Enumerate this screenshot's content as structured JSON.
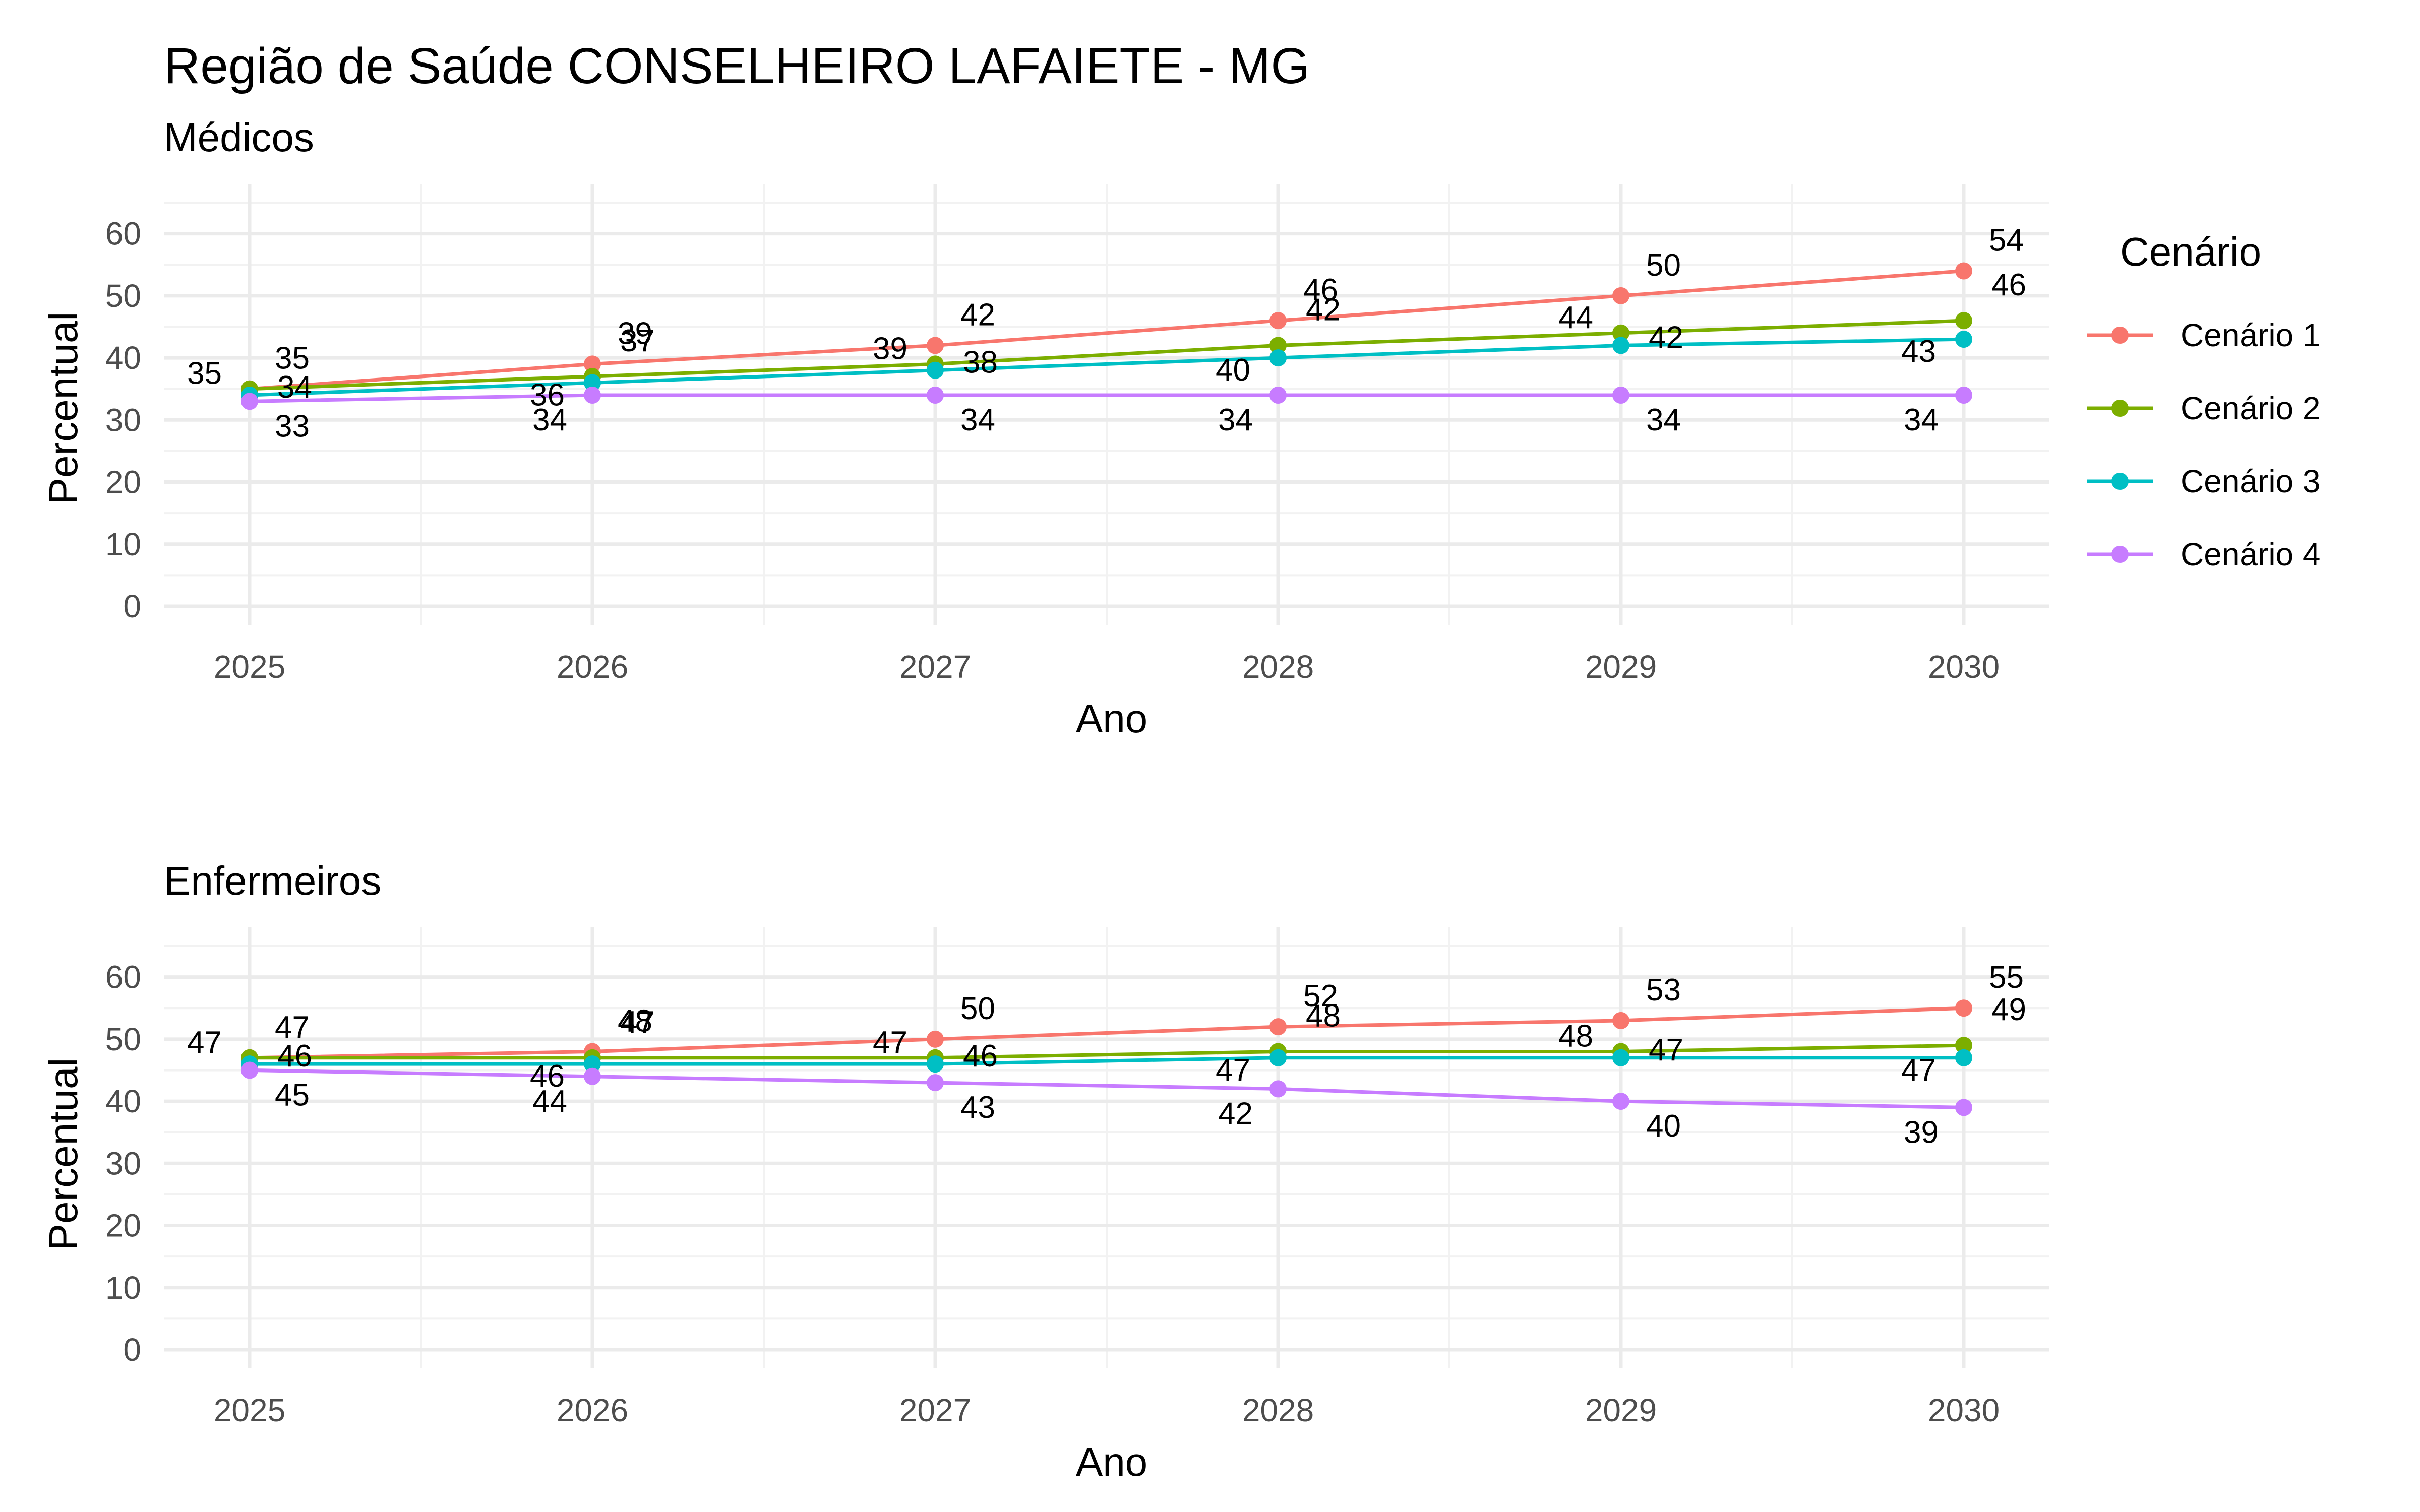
{
  "title": "Região de Saúde CONSELHEIRO LAFAIETE - MG",
  "legend": {
    "title": "Cenário",
    "items": [
      {
        "name": "Cenário 1",
        "color": "#F8766D"
      },
      {
        "name": "Cenário 2",
        "color": "#7CAE00"
      },
      {
        "name": "Cenário 3",
        "color": "#00BFC4"
      },
      {
        "name": "Cenário 4",
        "color": "#C77CFF"
      }
    ]
  },
  "chart_data": [
    {
      "type": "line",
      "subtitle": "Médicos",
      "xlabel": "Ano",
      "ylabel": "Percentual",
      "x": [
        "2025",
        "2026",
        "2027",
        "2028",
        "2029",
        "2030"
      ],
      "yticks": [
        "0",
        "10",
        "20",
        "30",
        "40",
        "50",
        "60"
      ],
      "ylim": [
        -3,
        68
      ],
      "series": [
        {
          "name": "Cenário 1",
          "values": [
            35,
            39,
            42,
            46,
            50,
            54
          ],
          "labels": [
            "35",
            "39",
            "42",
            "46",
            "50",
            "54"
          ]
        },
        {
          "name": "Cenário 2",
          "values": [
            35,
            37,
            39,
            42,
            44,
            46
          ],
          "labels": [
            "35",
            "37",
            "39",
            "42",
            "44",
            "46"
          ]
        },
        {
          "name": "Cenário 3",
          "values": [
            34,
            36,
            38,
            40,
            42,
            43
          ],
          "labels": [
            "34",
            "36",
            "38",
            "40",
            "42",
            "43"
          ]
        },
        {
          "name": "Cenário 4",
          "values": [
            33,
            34,
            34,
            34,
            34,
            34
          ],
          "labels": [
            "33",
            "34",
            "34",
            "34",
            "34",
            "34"
          ]
        }
      ]
    },
    {
      "type": "line",
      "subtitle": "Enfermeiros",
      "xlabel": "Ano",
      "ylabel": "Percentual",
      "x": [
        "2025",
        "2026",
        "2027",
        "2028",
        "2029",
        "2030"
      ],
      "yticks": [
        "0",
        "10",
        "20",
        "30",
        "40",
        "50",
        "60"
      ],
      "ylim": [
        -3,
        68
      ],
      "series": [
        {
          "name": "Cenário 1",
          "values": [
            47,
            48,
            50,
            52,
            53,
            55
          ],
          "labels": [
            "47",
            "48",
            "50",
            "52",
            "53",
            "55"
          ]
        },
        {
          "name": "Cenário 2",
          "values": [
            47,
            47,
            47,
            48,
            48,
            49
          ],
          "labels": [
            "47",
            "47",
            "47",
            "48",
            "48",
            "49"
          ]
        },
        {
          "name": "Cenário 3",
          "values": [
            46,
            46,
            46,
            47,
            47,
            47
          ],
          "labels": [
            "46",
            "46",
            "46",
            "47",
            "47",
            "47"
          ]
        },
        {
          "name": "Cenário 4",
          "values": [
            45,
            44,
            43,
            42,
            40,
            39
          ],
          "labels": [
            "45",
            "44",
            "43",
            "42",
            "40",
            "39"
          ]
        }
      ]
    }
  ]
}
